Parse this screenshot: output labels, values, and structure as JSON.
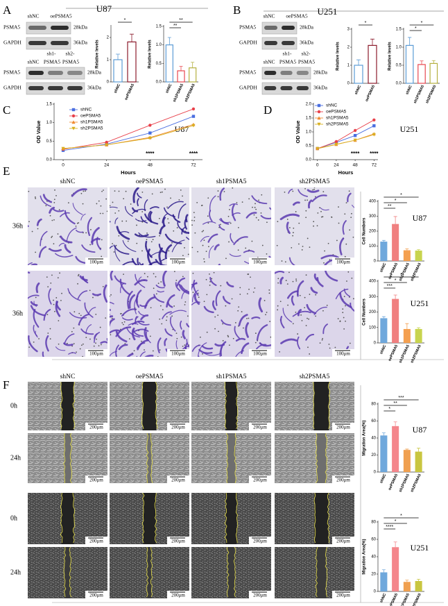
{
  "panel_labels": [
    "A",
    "B",
    "C",
    "D",
    "E",
    "F"
  ],
  "blots": [
    {
      "cell_line": "U87",
      "top_lanes": [
        "shNC",
        "oePSMA5"
      ],
      "bottom_prefixes": [
        "sh1-",
        "sh2-"
      ],
      "bottom_lanes": [
        "shNC",
        "PSMA5",
        "PSMA5"
      ],
      "proteins": [
        "PSMA5",
        "GAPDH"
      ],
      "sizes": [
        "28kDa",
        "36kDa"
      ]
    },
    {
      "cell_line": "U251",
      "top_lanes": [
        "shNC",
        "oePSMA5"
      ],
      "bottom_prefixes": [
        "sh1-",
        "sh2-"
      ],
      "bottom_lanes": [
        "shNC",
        "PSMA5",
        "PSMA5"
      ],
      "proteins": [
        "PSMA5",
        "GAPDH"
      ],
      "sizes": [
        "28kDa",
        "36kDa"
      ]
    }
  ],
  "images": {
    "conditions": [
      "shNC",
      "oePSMA5",
      "sh1PSMA5",
      "sh2PSMA5"
    ],
    "transwell_time": "36h",
    "transwell_scale": "100μm",
    "wound_times": [
      "0h",
      "24h"
    ],
    "wound_scale": "200μm"
  },
  "chart_data": [
    {
      "type": "bar",
      "filled": false,
      "y_label": "Relative levels",
      "categories": [
        "shNC",
        "oePSMA5"
      ],
      "values": [
        1.0,
        1.8
      ],
      "errors": [
        0.25,
        0.35
      ],
      "colors": [
        "#5b9bd5",
        "#8b1a2b"
      ],
      "ylim": [
        0,
        2.5
      ],
      "yticks": [
        0,
        1,
        2
      ],
      "significance": [
        "*"
      ]
    },
    {
      "type": "bar",
      "filled": false,
      "y_label": "Relative levels",
      "categories": [
        "shNC",
        "sh1PSMA5",
        "sh2PSMA5"
      ],
      "values": [
        1.0,
        0.3,
        0.38
      ],
      "errors": [
        0.2,
        0.12,
        0.15
      ],
      "colors": [
        "#5b9bd5",
        "#e8474f",
        "#b5b040"
      ],
      "ylim": [
        0,
        1.5
      ],
      "yticks": [
        {
          "value": 0,
          "label": "0.0"
        },
        {
          "value": 0.5,
          "label": "0.5"
        },
        {
          "value": 1,
          "label": "1.0"
        },
        {
          "value": 1.5,
          "label": "1.5"
        }
      ],
      "significance": [
        "**",
        "**"
      ]
    },
    {
      "type": "bar",
      "filled": false,
      "y_label": "Relative levels",
      "categories": [
        "shNC",
        "oePSMA5"
      ],
      "values": [
        1.0,
        2.1
      ],
      "errors": [
        0.3,
        0.35
      ],
      "colors": [
        "#5b9bd5",
        "#8b1a2b"
      ],
      "ylim": [
        0,
        3
      ],
      "yticks": [
        0,
        1,
        2,
        3
      ],
      "significance": [
        "*"
      ]
    },
    {
      "type": "bar",
      "filled": false,
      "y_label": "Relative levels",
      "categories": [
        "shNC",
        "sh1PSMA5",
        "sh2PSMA5"
      ],
      "values": [
        1.05,
        0.52,
        0.55
      ],
      "errors": [
        0.22,
        0.1,
        0.08
      ],
      "colors": [
        "#5b9bd5",
        "#e8474f",
        "#b5b040"
      ],
      "ylim": [
        0,
        1.5
      ],
      "yticks": [
        {
          "value": 0,
          "label": "0.0"
        },
        {
          "value": 0.5,
          "label": "0.5"
        },
        {
          "value": 1,
          "label": "1.0"
        },
        {
          "value": 1.5,
          "label": "1.5"
        }
      ],
      "significance": [
        "*",
        "*"
      ]
    },
    {
      "type": "line",
      "annotation": "U87",
      "x_label": "Hours",
      "y_label": "OD Value",
      "x": [
        0,
        24,
        48,
        72
      ],
      "xlim": [
        -5,
        77
      ],
      "xticks": [
        0,
        24,
        48,
        72
      ],
      "ylim": [
        0,
        1.5
      ],
      "yticks": [
        {
          "value": 0,
          "label": "0.0"
        },
        {
          "value": 0.5,
          "label": "0.5"
        },
        {
          "value": 1,
          "label": "1.0"
        },
        {
          "value": 1.5,
          "label": "1.5"
        }
      ],
      "annotations": [
        "****",
        "****"
      ],
      "series": [
        {
          "name": "shNC",
          "color": "#4a6ee0",
          "marker": "square",
          "values": [
            0.25,
            0.42,
            0.72,
            1.17
          ]
        },
        {
          "name": "oePSMA5",
          "color": "#e8404a",
          "marker": "circle",
          "values": [
            0.28,
            0.47,
            0.93,
            1.37
          ]
        },
        {
          "name": "sh1PSMA5",
          "color": "#f08a30",
          "marker": "triangle",
          "values": [
            0.3,
            0.4,
            0.6,
            0.95
          ]
        },
        {
          "name": "sh2PSMA5",
          "color": "#d8b020",
          "marker": "triangle-down",
          "values": [
            0.3,
            0.4,
            0.58,
            0.92
          ]
        }
      ]
    },
    {
      "type": "line",
      "annotation": "U251",
      "x_label": "Hours",
      "y_label": "OD Value",
      "x": [
        0,
        24,
        48,
        72
      ],
      "xlim": [
        -5,
        77
      ],
      "xticks": [
        0,
        24,
        48,
        72
      ],
      "ylim": [
        0,
        2.0
      ],
      "yticks": [
        {
          "value": 0,
          "label": "0.0"
        },
        {
          "value": 0.5,
          "label": "0.5"
        },
        {
          "value": 1,
          "label": "1.0"
        },
        {
          "value": 1.5,
          "label": "1.5"
        },
        {
          "value": 2,
          "label": "2.0"
        }
      ],
      "annotations": [
        "****",
        "****"
      ],
      "series": [
        {
          "name": "shNC",
          "color": "#4a6ee0",
          "marker": "square",
          "values": [
            0.4,
            0.62,
            0.87,
            1.22
          ]
        },
        {
          "name": "oePSMA5",
          "color": "#e8404a",
          "marker": "circle",
          "values": [
            0.4,
            0.65,
            1.05,
            1.43
          ]
        },
        {
          "name": "sh1PSMA5",
          "color": "#f08a30",
          "marker": "triangle",
          "values": [
            0.4,
            0.55,
            0.7,
            0.93
          ]
        },
        {
          "name": "sh2PSMA5",
          "color": "#d8b020",
          "marker": "triangle-down",
          "values": [
            0.4,
            0.55,
            0.7,
            0.9
          ]
        }
      ]
    },
    {
      "type": "bar",
      "filled": true,
      "annotation": "U87",
      "y_label": "Cell Numbers",
      "categories": [
        "shNC",
        "oePSMA5",
        "sh1PSMA5",
        "sh2PSMA5"
      ],
      "values": [
        130,
        248,
        72,
        70
      ],
      "errors": [
        8,
        50,
        10,
        6
      ],
      "colors": [
        "#6fa8dc",
        "#f08080",
        "#f4a050",
        "#c8d44e"
      ],
      "ylim": [
        0,
        400
      ],
      "yticks": [
        0,
        100,
        200,
        300,
        400
      ],
      "significance": [
        "**",
        "*",
        "*"
      ]
    },
    {
      "type": "bar",
      "filled": true,
      "annotation": "U251",
      "y_label": "Cell Numbers",
      "categories": [
        "shNC",
        "oePSMA5",
        "sh1PSMA5",
        "sh2PSMA5"
      ],
      "values": [
        160,
        285,
        90,
        90
      ],
      "errors": [
        10,
        25,
        35,
        8
      ],
      "colors": [
        "#6fa8dc",
        "#f08080",
        "#f4a050",
        "#c8d44e"
      ],
      "ylim": [
        0,
        400
      ],
      "yticks": [
        0,
        100,
        200,
        300,
        400
      ],
      "significance": [
        "***",
        "*",
        "*"
      ]
    },
    {
      "type": "bar",
      "filled": true,
      "annotation": "U87",
      "y_label": "Migration Area(%)",
      "categories": [
        "shNC",
        "oePSMA5",
        "sh1PSMA5",
        "sh2PSMA5"
      ],
      "values": [
        43,
        54,
        26,
        24
      ],
      "errors": [
        3,
        5,
        1,
        4
      ],
      "colors": [
        "#6fa8dc",
        "#f4868c",
        "#f0a050",
        "#c9c640"
      ],
      "ylim": [
        0,
        80
      ],
      "yticks": [
        0,
        20,
        40,
        60,
        80
      ],
      "significance": [
        "*",
        "**",
        "***"
      ]
    },
    {
      "type": "bar",
      "filled": true,
      "annotation": "U251",
      "y_label": "Migration Area(%)",
      "categories": [
        "shNC",
        "oePSMA5",
        "sh1PSMA5",
        "sh2PSMA5"
      ],
      "values": [
        22,
        51,
        11,
        12
      ],
      "errors": [
        3,
        6,
        2,
        2
      ],
      "colors": [
        "#6fa8dc",
        "#f4868c",
        "#f0a050",
        "#c9c640"
      ],
      "ylim": [
        0,
        80
      ],
      "yticks": [
        0,
        20,
        40,
        60,
        80
      ],
      "significance": [
        "****",
        "*",
        "*"
      ]
    }
  ]
}
